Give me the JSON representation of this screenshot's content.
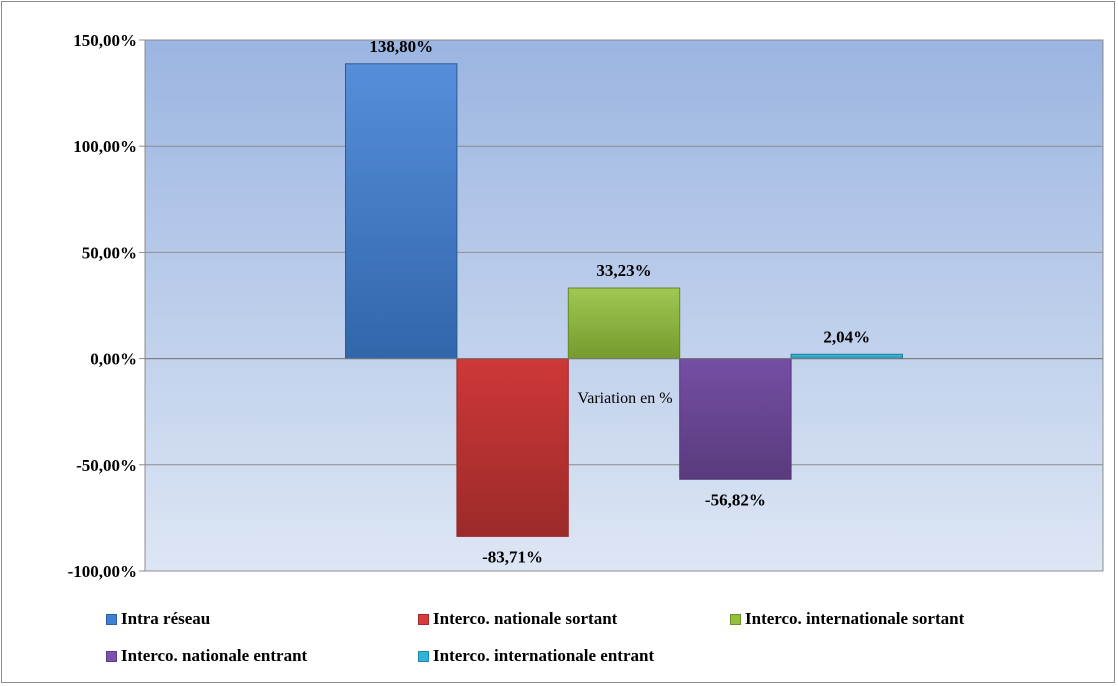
{
  "chart_data": {
    "type": "bar",
    "xlabel": "Variation en %",
    "ylim": [
      -100,
      150
    ],
    "yticks": [
      150,
      100,
      50,
      0,
      -50,
      -100
    ],
    "ytick_labels": [
      "150,00%",
      "100,00%",
      "50,00%",
      "0,00%",
      "-50,00%",
      "-100,00%"
    ],
    "grid": true,
    "legend_position": "bottom",
    "series": [
      {
        "name": "Intra réseau",
        "value": 138.8,
        "label": "138,80%",
        "color": "#3f7fd6"
      },
      {
        "name": "Interco. nationale sortant",
        "value": -83.71,
        "label": "-83,71%",
        "color": "#d93b3b"
      },
      {
        "name": "Interco. internationale sortant",
        "value": 33.23,
        "label": "33,23%",
        "color": "#93c13a"
      },
      {
        "name": "Interco. nationale entrant",
        "value": -56.82,
        "label": "-56,82%",
        "color": "#7b52ad"
      },
      {
        "name": "Interco. internationale entrant",
        "value": 2.04,
        "label": "2,04%",
        "color": "#2fb3d9"
      }
    ]
  }
}
